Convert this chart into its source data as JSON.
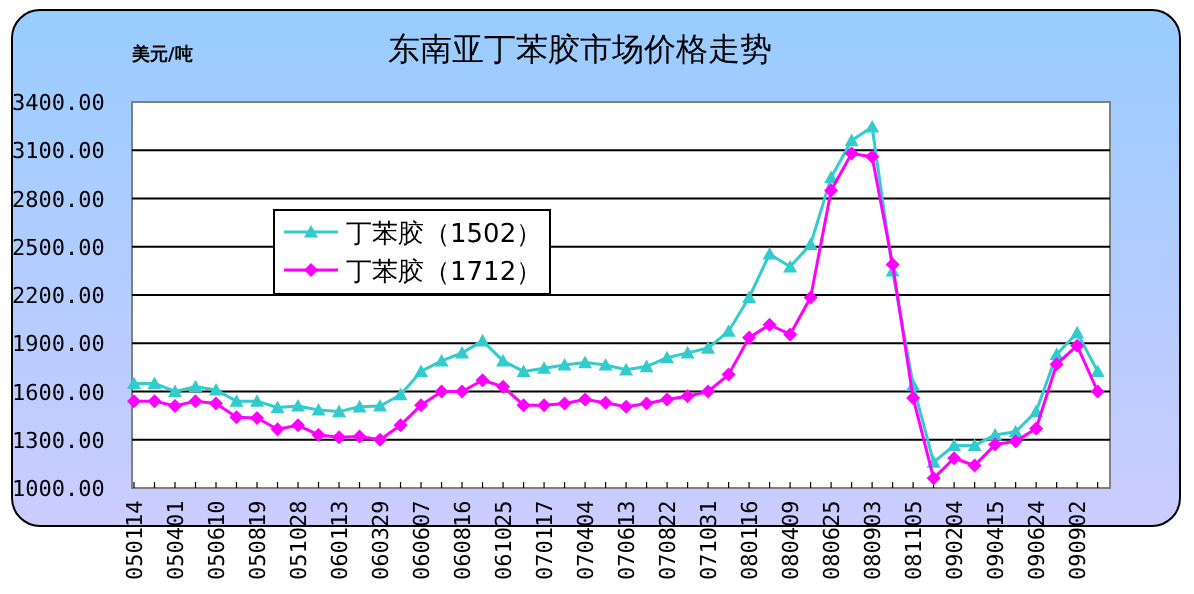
{
  "chart_data": {
    "type": "line",
    "title": "东南亚丁苯胶市场价格走势",
    "ylabel": "美元/吨",
    "categories": [
      "050114",
      null,
      "050401",
      null,
      "050610",
      null,
      "050819",
      null,
      "051028",
      null,
      "060113",
      null,
      "060329",
      null,
      "060607",
      null,
      "060816",
      null,
      "061025",
      null,
      "070117",
      null,
      "070404",
      null,
      "070613",
      null,
      "070822",
      null,
      "071031",
      null,
      "080116",
      null,
      "080409",
      null,
      "080625",
      null,
      "080903",
      null,
      "081105",
      null,
      "090204",
      null,
      "090415",
      null,
      "090624",
      null,
      "090902",
      null
    ],
    "series": [
      {
        "name": "丁苯胶（1502）",
        "color": "#33cccc",
        "marker": "triangle",
        "values": [
          1650,
          1650,
          1600,
          1630,
          1610,
          1540,
          1540,
          1500,
          1510,
          1485,
          1475,
          1505,
          1510,
          1580,
          1725,
          1790,
          1840,
          1915,
          1790,
          1725,
          1745,
          1765,
          1780,
          1765,
          1735,
          1755,
          1810,
          1840,
          1870,
          1975,
          2185,
          2455,
          2375,
          2515,
          2930,
          3160,
          3245,
          2350,
          1640,
          1160,
          1265,
          1265,
          1330,
          1350,
          1475,
          1830,
          1965,
          1725
        ]
      },
      {
        "name": "丁苯胶（1712）",
        "color": "#ff00ff",
        "marker": "diamond",
        "values": [
          1540,
          1540,
          1510,
          1540,
          1525,
          1440,
          1435,
          1365,
          1390,
          1330,
          1315,
          1320,
          1300,
          1390,
          1515,
          1600,
          1600,
          1670,
          1630,
          1515,
          1515,
          1525,
          1550,
          1530,
          1505,
          1525,
          1550,
          1570,
          1600,
          1705,
          1935,
          2015,
          1955,
          2185,
          2850,
          3080,
          3060,
          2390,
          1560,
          1060,
          1185,
          1140,
          1270,
          1290,
          1370,
          1770,
          1885,
          1600
        ]
      }
    ],
    "ylim": [
      1000,
      3400
    ],
    "yticks": [
      {
        "value": 1000,
        "label": "1000.00"
      },
      {
        "value": 1300,
        "label": "1300.00"
      },
      {
        "value": 1600,
        "label": "1600.00"
      },
      {
        "value": 1900,
        "label": "1900.00"
      },
      {
        "value": 2200,
        "label": "2200.00"
      },
      {
        "value": 2500,
        "label": "2500.00"
      },
      {
        "value": 2800,
        "label": "2800.00"
      },
      {
        "value": 3100,
        "label": "3100.00"
      },
      {
        "value": 3400,
        "label": "3400.00"
      }
    ],
    "grid": "y",
    "legend": "left"
  }
}
